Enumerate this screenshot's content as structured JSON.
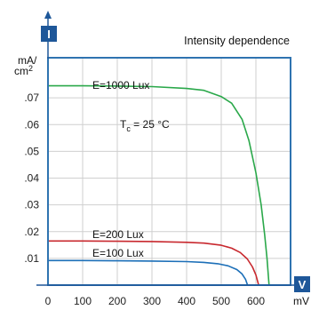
{
  "chart_data": {
    "type": "line",
    "title": "Intensity dependence",
    "xlabel": "V",
    "xunit": "mV",
    "ylabel": "I",
    "yunit_line1": "mA/",
    "yunit_line2": "cm",
    "yunit_sup": "2",
    "xlim": [
      0,
      700
    ],
    "ylim": [
      0,
      0.085
    ],
    "x_ticks": [
      0,
      100,
      200,
      300,
      400,
      500,
      600
    ],
    "x_tick_labels": [
      "0",
      "100",
      "200",
      "300",
      "400",
      "500",
      "600"
    ],
    "y_ticks": [
      0.01,
      0.02,
      0.03,
      0.04,
      0.05,
      0.06,
      0.07
    ],
    "y_tick_labels": [
      ".01",
      ".02",
      ".03",
      ".04",
      ".05",
      ".06",
      ".07"
    ],
    "grid": true,
    "annotation": {
      "main": "T",
      "sub": "c",
      "rest": " = 25 °C"
    },
    "series": [
      {
        "name": "E=1000 Lux",
        "color": "#2aa84a",
        "x": [
          0,
          100,
          200,
          300,
          400,
          450,
          500,
          530,
          560,
          580,
          600,
          615,
          625,
          632,
          638
        ],
        "y": [
          0.0745,
          0.0745,
          0.0744,
          0.0742,
          0.0735,
          0.0728,
          0.0705,
          0.068,
          0.062,
          0.054,
          0.042,
          0.03,
          0.019,
          0.01,
          0.0
        ]
      },
      {
        "name": "E=200 Lux",
        "color": "#c8282e",
        "x": [
          0,
          100,
          200,
          300,
          400,
          450,
          500,
          530,
          555,
          575,
          590,
          600,
          608
        ],
        "y": [
          0.0165,
          0.0165,
          0.0164,
          0.0163,
          0.016,
          0.0157,
          0.0149,
          0.0138,
          0.0122,
          0.0098,
          0.0068,
          0.0038,
          0.0
        ]
      },
      {
        "name": "E=100 Lux",
        "color": "#1c6fb8",
        "x": [
          0,
          100,
          200,
          300,
          400,
          450,
          490,
          520,
          545,
          560,
          570,
          576
        ],
        "y": [
          0.0092,
          0.0092,
          0.0091,
          0.009,
          0.0088,
          0.0085,
          0.008,
          0.0072,
          0.0058,
          0.0042,
          0.0022,
          0.0
        ]
      }
    ]
  },
  "colors": {
    "frame": "#2f73b0",
    "grid": "#cfcfcf",
    "badge": "#1e5799",
    "axis": "#1e5799"
  }
}
